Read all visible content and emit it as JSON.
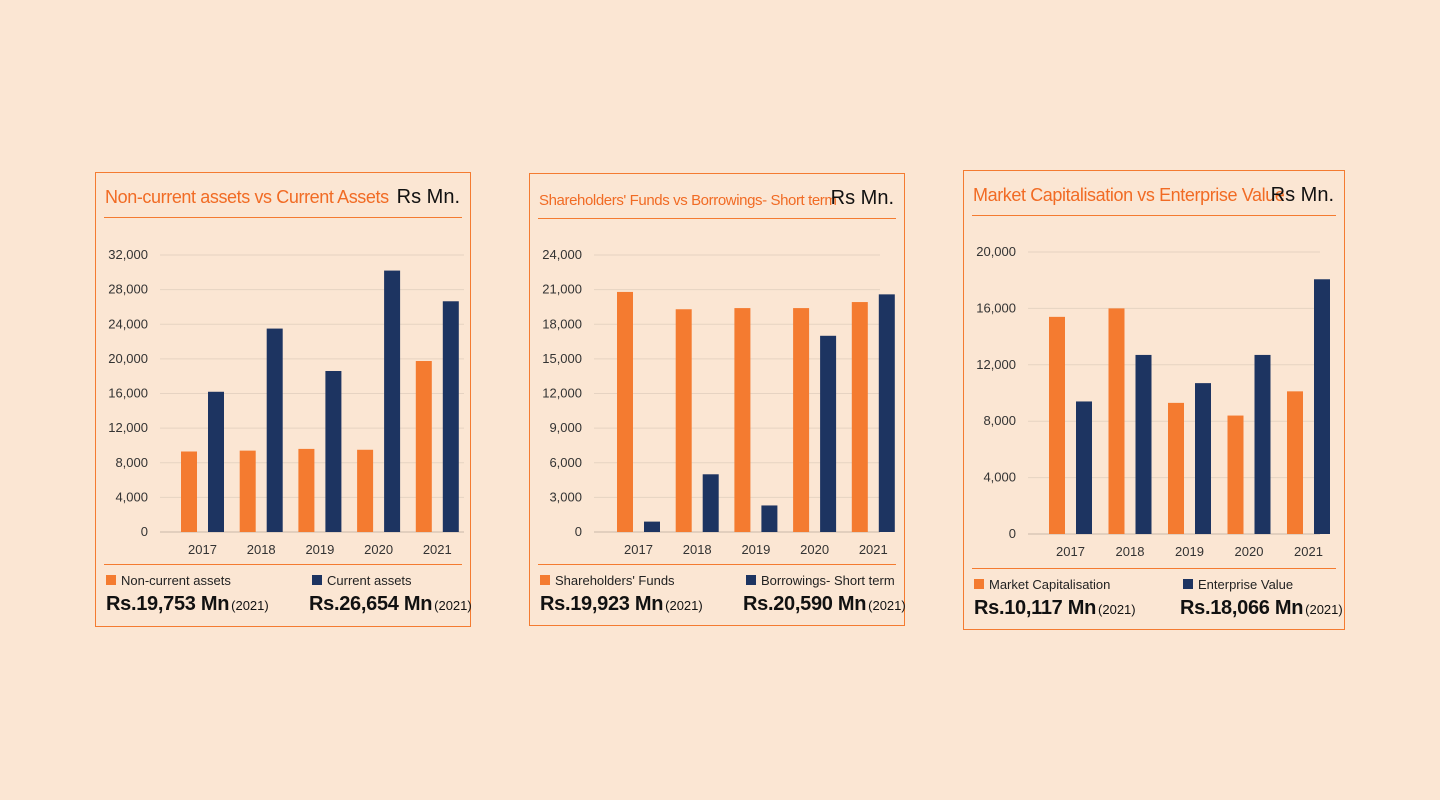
{
  "colors": {
    "primary": "#f47b30",
    "secondary": "#1d3461",
    "accent": "#f16b24"
  },
  "charts": [
    {
      "title": "Non-current assets vs Current Assets",
      "unit": "Rs Mn.",
      "legend": [
        {
          "label": "Non-current assets",
          "value": "Rs.19,753 Mn",
          "year": "(2021)"
        },
        {
          "label": "Current assets",
          "value": "Rs.26,654 Mn",
          "year": "(2021)"
        }
      ]
    },
    {
      "title": "Shareholders' Funds vs Borrowings- Short term",
      "unit": "Rs Mn.",
      "legend": [
        {
          "label": "Shareholders' Funds",
          "value": "Rs.19,923 Mn",
          "year": "(2021)"
        },
        {
          "label": "Borrowings- Short term",
          "value": "Rs.20,590 Mn",
          "year": "(2021)"
        }
      ]
    },
    {
      "title": "Market Capitalisation vs Enterprise Value",
      "unit": "Rs Mn.",
      "legend": [
        {
          "label": "Market Capitalisation",
          "value": "Rs.10,117 Mn",
          "year": "(2021)"
        },
        {
          "label": "Enterprise Value",
          "value": "Rs.18,066 Mn",
          "year": "(2021)"
        }
      ]
    }
  ],
  "chart_data": [
    {
      "type": "bar",
      "title": "Non-current assets vs Current Assets",
      "categories": [
        "2017",
        "2018",
        "2019",
        "2020",
        "2021"
      ],
      "series": [
        {
          "name": "Non-current assets",
          "values": [
            9300,
            9400,
            9600,
            9500,
            19753
          ]
        },
        {
          "name": "Current assets",
          "values": [
            16200,
            23500,
            18600,
            30200,
            26654
          ]
        }
      ],
      "yticks": [
        "0",
        "4,000",
        "8,000",
        "12,000",
        "16,000",
        "20,000",
        "24,000",
        "28,000",
        "32,000"
      ],
      "ylim": [
        0,
        32000
      ],
      "grid": true,
      "legend": "bottom"
    },
    {
      "type": "bar",
      "title": "Shareholders' Funds vs Borrowings- Short term",
      "categories": [
        "2017",
        "2018",
        "2019",
        "2020",
        "2021"
      ],
      "series": [
        {
          "name": "Shareholders' Funds",
          "values": [
            20800,
            19300,
            19400,
            19400,
            19923
          ]
        },
        {
          "name": "Borrowings- Short term",
          "values": [
            900,
            5000,
            2300,
            17000,
            20590
          ]
        }
      ],
      "yticks": [
        "0",
        "3,000",
        "6,000",
        "9,000",
        "12,000",
        "15,000",
        "18,000",
        "21,000",
        "24,000"
      ],
      "ylim": [
        0,
        24000
      ],
      "grid": true,
      "legend": "bottom"
    },
    {
      "type": "bar",
      "title": "Market Capitalisation vs Enterprise Value",
      "categories": [
        "2017",
        "2018",
        "2019",
        "2020",
        "2021"
      ],
      "series": [
        {
          "name": "Market Capitalisation",
          "values": [
            15400,
            16000,
            9300,
            8400,
            10117
          ]
        },
        {
          "name": "Enterprise Value",
          "values": [
            9400,
            12700,
            10700,
            12700,
            18066
          ]
        }
      ],
      "yticks": [
        "0",
        "4,000",
        "8,000",
        "12,000",
        "16,000",
        "20,000"
      ],
      "ylim": [
        0,
        20000
      ],
      "grid": true,
      "legend": "bottom"
    }
  ]
}
